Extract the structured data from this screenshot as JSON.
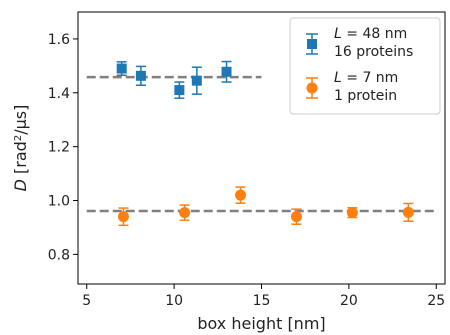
{
  "chart_data": {
    "type": "scatter",
    "xlabel": "box height [nm]",
    "ylabel": {
      "var": "D",
      "open": " [rad",
      "sup": "2",
      "close": "/μs]"
    },
    "xlim": [
      4.5,
      25.5
    ],
    "ylim": [
      0.69,
      1.7
    ],
    "xticks": [
      5,
      10,
      15,
      20,
      25
    ],
    "yticks": [
      0.8,
      1.0,
      1.2,
      1.4,
      1.6
    ],
    "xtick_labels": [
      "5",
      "10",
      "15",
      "20",
      "25"
    ],
    "ytick_labels": [
      "0.8",
      "1.0",
      "1.2",
      "1.4",
      "1.6"
    ],
    "grid": false,
    "legend_position": "top-right",
    "series": [
      {
        "legend_line1_var": "L",
        "legend_line1_rest": " = 48 nm",
        "legend_line2": "16 proteins",
        "color": "#1f77b4",
        "marker": "square",
        "points": [
          {
            "x": 7.0,
            "y": 1.49,
            "err": 0.025
          },
          {
            "x": 8.1,
            "y": 1.463,
            "err": 0.035
          },
          {
            "x": 10.3,
            "y": 1.41,
            "err": 0.03
          },
          {
            "x": 11.3,
            "y": 1.445,
            "err": 0.05
          },
          {
            "x": 13.0,
            "y": 1.478,
            "err": 0.038
          }
        ],
        "mean": {
          "y": 1.458,
          "x_start": 5.0,
          "x_end": 15.0
        }
      },
      {
        "legend_line1_var": "L",
        "legend_line1_rest": " = 7 nm",
        "legend_line2": "1 protein",
        "color": "#ff7f0e",
        "marker": "circle",
        "points": [
          {
            "x": 7.1,
            "y": 0.94,
            "err": 0.032
          },
          {
            "x": 10.6,
            "y": 0.955,
            "err": 0.028
          },
          {
            "x": 13.8,
            "y": 1.02,
            "err": 0.03
          },
          {
            "x": 17.0,
            "y": 0.94,
            "err": 0.028
          },
          {
            "x": 20.2,
            "y": 0.955,
            "err": 0.018
          },
          {
            "x": 23.4,
            "y": 0.956,
            "err": 0.033
          }
        ],
        "mean": {
          "y": 0.961,
          "x_start": 5.0,
          "x_end": 25.0
        }
      }
    ]
  }
}
